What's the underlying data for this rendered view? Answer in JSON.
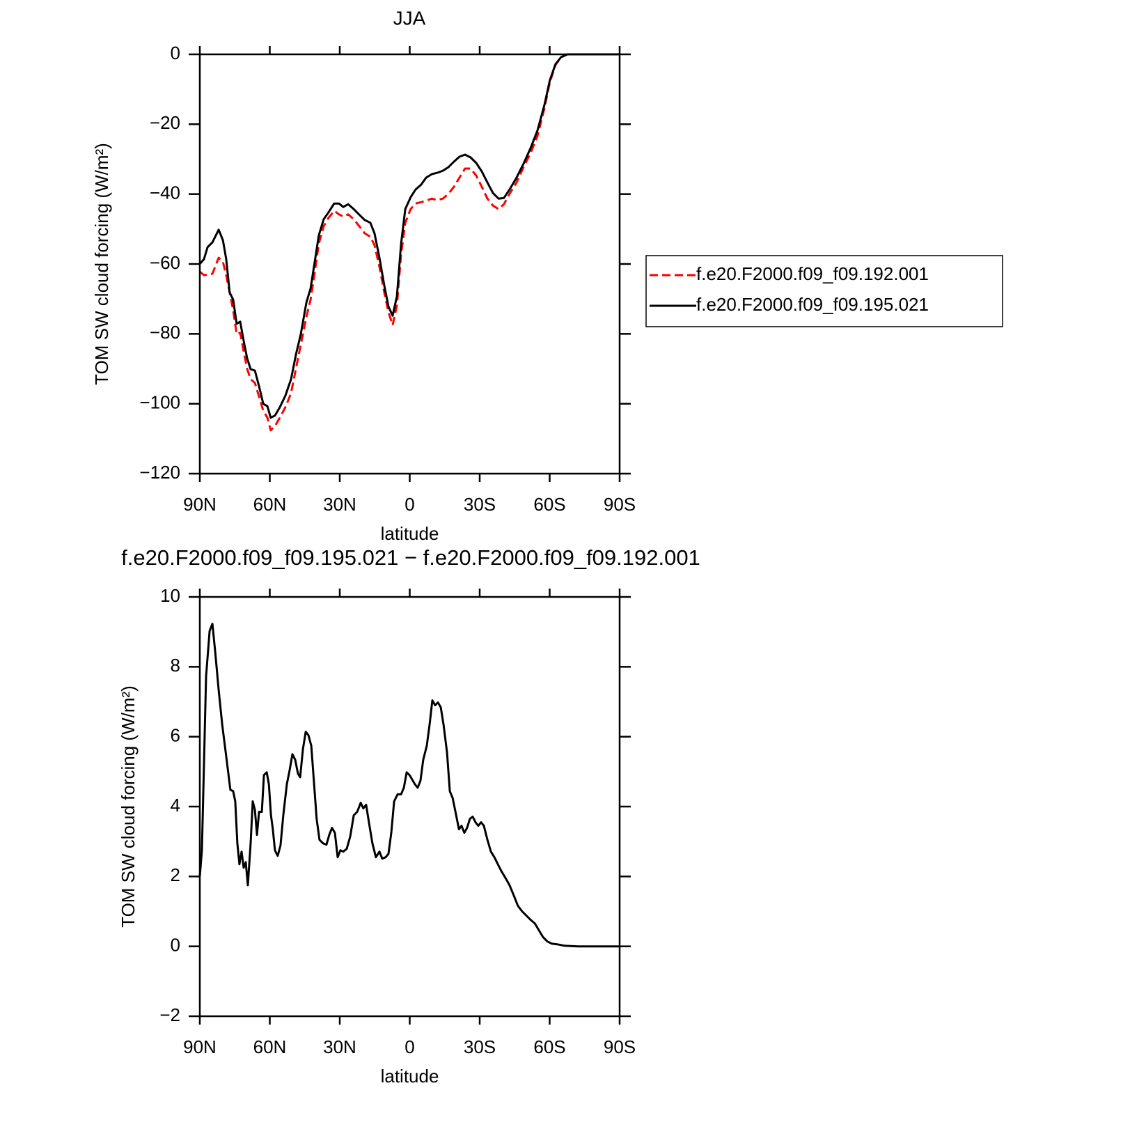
{
  "chart_data": [
    {
      "type": "line",
      "title": "JJA",
      "xlabel": "latitude",
      "ylabel": "TOM SW cloud forcing (W/m²)",
      "x": [
        90,
        88.2,
        86.7,
        84.6,
        81.9,
        80.1,
        78.7,
        77.2,
        75.7,
        74.2,
        72.7,
        71.2,
        69.7,
        68.2,
        66.4,
        64.6,
        62.8,
        61.0,
        59.6,
        57.8,
        55.7,
        53.3,
        50.9,
        48.8,
        46.7,
        44.3,
        42.5,
        40.7,
        39.0,
        36.9,
        34.8,
        32.4,
        30.3,
        28.5,
        26.4,
        24.0,
        21.6,
        19.3,
        16.9,
        15.1,
        13.0,
        10.9,
        9.1,
        7.3,
        5.5,
        3.7,
        1.9,
        -0.4,
        -2.5,
        -4.9,
        -7.0,
        -9.4,
        -11.8,
        -14.2,
        -16.6,
        -19.0,
        -21.3,
        -23.7,
        -26.1,
        -28.5,
        -30.9,
        -33.3,
        -35.7,
        -38.1,
        -40.4,
        -42.8,
        -45.8,
        -48.8,
        -51.8,
        -54.8,
        -57.8,
        -60.1,
        -62.5,
        -64.9,
        -67.6,
        -72.1,
        -90
      ],
      "series": [
        {
          "name": "f.e20.F2000.f09_f09.192.001",
          "color": "#ff0000",
          "dash": "dashed",
          "values": [
            -62.2,
            -63.2,
            -63.0,
            -62.8,
            -58.2,
            -59.4,
            -63.2,
            -68.2,
            -73.2,
            -80.1,
            -79.7,
            -85.1,
            -90,
            -93,
            -94,
            -98,
            -102,
            -104,
            -107.6,
            -106.4,
            -104,
            -101,
            -97,
            -90,
            -83,
            -75.1,
            -70.2,
            -62.2,
            -54.2,
            -49.2,
            -46.8,
            -44.8,
            -45.8,
            -46.4,
            -45.8,
            -47.2,
            -49.2,
            -51.2,
            -52.2,
            -54.6,
            -60.8,
            -68.2,
            -73.8,
            -77.5,
            -71.8,
            -57.2,
            -48.2,
            -44.3,
            -42.7,
            -42.3,
            -41.9,
            -41.3,
            -41.7,
            -41.3,
            -39.9,
            -37.9,
            -35.3,
            -32.7,
            -32.7,
            -34.7,
            -37.9,
            -41.3,
            -43.3,
            -44.3,
            -42.9,
            -39.9,
            -36.7,
            -32.3,
            -28.3,
            -23.3,
            -15.3,
            -8,
            -3,
            -0.8,
            0,
            0,
            0
          ]
        },
        {
          "name": "f.e20.F2000.f09_f09.195.021",
          "color": "#000000",
          "dash": "solid",
          "values": [
            -60,
            -58.6,
            -55.2,
            -53.8,
            -50.2,
            -53.2,
            -58.6,
            -68.2,
            -70.2,
            -77.1,
            -76.5,
            -82,
            -87,
            -90.1,
            -90.5,
            -95,
            -100,
            -100.7,
            -104,
            -103.4,
            -101,
            -97.7,
            -93,
            -86,
            -80,
            -71,
            -67,
            -59.2,
            -51.8,
            -47.2,
            -45.2,
            -42.7,
            -42.7,
            -43.7,
            -42.9,
            -44.3,
            -45.9,
            -47.4,
            -48.2,
            -51.2,
            -58.2,
            -66.2,
            -72.2,
            -74.8,
            -69.2,
            -54.2,
            -44.3,
            -40.9,
            -38.7,
            -37.3,
            -35.3,
            -34.3,
            -33.9,
            -33.3,
            -32.3,
            -30.7,
            -29.3,
            -28.7,
            -29.5,
            -31.1,
            -33.5,
            -36.7,
            -39.7,
            -41.3,
            -41.1,
            -38.7,
            -35.3,
            -31.3,
            -26.9,
            -21.7,
            -14.4,
            -7.4,
            -2.8,
            -0.8,
            0,
            0,
            0
          ]
        }
      ],
      "xlim": [
        90,
        -90
      ],
      "xticks": [
        {
          "value": 90,
          "label": "90N"
        },
        {
          "value": 60,
          "label": "60N"
        },
        {
          "value": 30,
          "label": "30N"
        },
        0,
        {
          "value": -30,
          "label": "30S"
        },
        {
          "value": -60,
          "label": "60S"
        },
        {
          "value": -90,
          "label": "90S"
        }
      ],
      "ylim": [
        -120,
        0
      ],
      "yticks": [
        0,
        {
          "value": -20,
          "label": "−20"
        },
        {
          "value": -40,
          "label": "−40"
        },
        {
          "value": -60,
          "label": "−60"
        },
        {
          "value": -80,
          "label": "−80"
        },
        {
          "value": -100,
          "label": "−100"
        },
        {
          "value": -120,
          "label": "−120"
        }
      ],
      "legend": "right"
    },
    {
      "type": "line",
      "title": "f.e20.F2000.f09_f09.195.021 − f.e20.F2000.f09_f09.192.001",
      "xlabel": "latitude",
      "ylabel": "TOM SW cloud forcing (W/m²)",
      "x": [
        90,
        89.1,
        87.3,
        85.8,
        84.6,
        83.4,
        81.9,
        80.4,
        78.7,
        76.9,
        75.7,
        74.8,
        73.9,
        73.0,
        72.1,
        71.2,
        70.3,
        69.4,
        68.2,
        67.3,
        66.4,
        65.5,
        64.6,
        63.4,
        62.5,
        61.3,
        60.4,
        59.5,
        58.7,
        57.8,
        56.6,
        55.4,
        54.2,
        52.7,
        51.5,
        50.3,
        49.1,
        47.9,
        47.0,
        45.8,
        44.6,
        43.4,
        42.2,
        41.1,
        39.9,
        38.7,
        37.2,
        35.7,
        34.5,
        33.3,
        32.1,
        30.9,
        29.7,
        28.5,
        27.0,
        25.5,
        24.0,
        22.5,
        21.0,
        19.9,
        18.7,
        17.5,
        16.0,
        14.5,
        13.0,
        11.8,
        10.3,
        9.1,
        7.9,
        6.7,
        5.2,
        3.7,
        2.5,
        1.3,
        0.1,
        -1.0,
        -2.2,
        -3.4,
        -4.6,
        -5.8,
        -7.3,
        -8.5,
        -9.7,
        -10.9,
        -12.1,
        -13.3,
        -14.5,
        -16.0,
        -17.2,
        -18.4,
        -19.6,
        -21.1,
        -22.2,
        -23.4,
        -24.6,
        -25.8,
        -27.0,
        -28.2,
        -29.4,
        -30.6,
        -31.8,
        -33.3,
        -34.8,
        -36.3,
        -37.8,
        -39.3,
        -41.1,
        -42.8,
        -44.6,
        -46.4,
        -48.2,
        -50.0,
        -51.8,
        -53.6,
        -55.4,
        -57.2,
        -59.0,
        -60.8,
        -63.2,
        -66.2,
        -72.1,
        -78.1,
        -90
      ],
      "values": [
        2.0,
        2.75,
        7.73,
        9.03,
        9.23,
        8.43,
        7.33,
        6.34,
        5.44,
        4.48,
        4.44,
        4.15,
        2.95,
        2.35,
        2.71,
        2.25,
        2.41,
        1.75,
        2.95,
        4.15,
        3.91,
        3.19,
        3.85,
        3.85,
        4.9,
        4.98,
        4.64,
        3.75,
        3.35,
        2.75,
        2.59,
        2.89,
        3.75,
        4.64,
        5.04,
        5.5,
        5.34,
        4.94,
        4.84,
        5.64,
        6.14,
        6.04,
        5.74,
        4.74,
        3.65,
        3.05,
        2.95,
        2.91,
        3.19,
        3.39,
        3.25,
        2.55,
        2.75,
        2.71,
        2.79,
        3.15,
        3.75,
        3.85,
        4.11,
        3.95,
        4.05,
        3.55,
        2.95,
        2.55,
        2.71,
        2.51,
        2.55,
        2.65,
        3.25,
        4.15,
        4.35,
        4.35,
        4.54,
        4.98,
        4.9,
        4.78,
        4.64,
        4.54,
        4.74,
        5.34,
        5.74,
        6.34,
        7.04,
        6.9,
        6.98,
        6.84,
        6.34,
        5.54,
        4.44,
        4.25,
        3.85,
        3.35,
        3.45,
        3.25,
        3.39,
        3.65,
        3.71,
        3.55,
        3.45,
        3.55,
        3.45,
        3.05,
        2.71,
        2.55,
        2.35,
        2.15,
        1.95,
        1.75,
        1.46,
        1.16,
        1.0,
        0.88,
        0.76,
        0.66,
        0.46,
        0.26,
        0.14,
        0.08,
        0.06,
        0.02,
        0,
        0,
        0
      ],
      "color": "#000000",
      "xlim": [
        90,
        -90
      ],
      "xticks": [
        {
          "value": 90,
          "label": "90N"
        },
        {
          "value": 60,
          "label": "60N"
        },
        {
          "value": 30,
          "label": "30N"
        },
        0,
        {
          "value": -30,
          "label": "30S"
        },
        {
          "value": -60,
          "label": "60S"
        },
        {
          "value": -90,
          "label": "90S"
        }
      ],
      "ylim": [
        -2,
        10
      ],
      "yticks": [
        10,
        8,
        6,
        4,
        2,
        0,
        {
          "value": -2,
          "label": "−2"
        }
      ]
    }
  ]
}
